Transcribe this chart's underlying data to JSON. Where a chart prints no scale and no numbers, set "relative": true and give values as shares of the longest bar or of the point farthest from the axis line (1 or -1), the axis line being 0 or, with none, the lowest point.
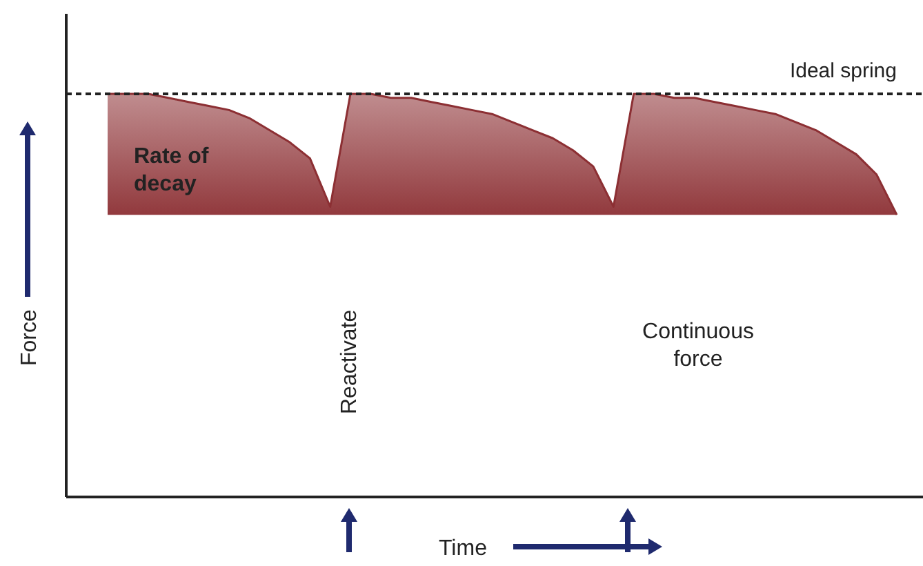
{
  "chart_data": {
    "type": "line",
    "relative": true,
    "xlabel": "Time",
    "ylabel": "Force",
    "marker": "none",
    "line_style": "solid",
    "categories": [
      null,
      null,
      null,
      null,
      null,
      null,
      null,
      null,
      null,
      null,
      null,
      null,
      null,
      null,
      null,
      null,
      null,
      null,
      null,
      null,
      null,
      null,
      null,
      null,
      null,
      null,
      null,
      null,
      null,
      null,
      null,
      null,
      null,
      null,
      null,
      null,
      null,
      null,
      null,
      null
    ],
    "series": [
      {
        "color": "#8c2f33",
        "values": [
          1,
          1,
          1,
          0.99,
          0.98,
          0.97,
          0.96,
          0.94,
          0.91,
          0.88,
          0.84,
          0.72,
          1,
          1,
          0.99,
          0.99,
          0.98,
          0.97,
          0.96,
          0.95,
          0.93,
          0.91,
          0.89,
          0.86,
          0.82,
          0.72,
          1,
          1,
          0.99,
          0.99,
          0.98,
          0.97,
          0.96,
          0.95,
          0.93,
          0.91,
          0.88,
          0.85,
          0.8,
          0.7
        ]
      }
    ],
    "ref_lines": [
      {
        "axis": "y",
        "value": 1,
        "label": "Ideal spring",
        "line_style": "dashed",
        "color": "#222222"
      }
    ],
    "annotations": [
      "Rate of decay",
      "Reactivate",
      "Continuous force"
    ]
  }
}
